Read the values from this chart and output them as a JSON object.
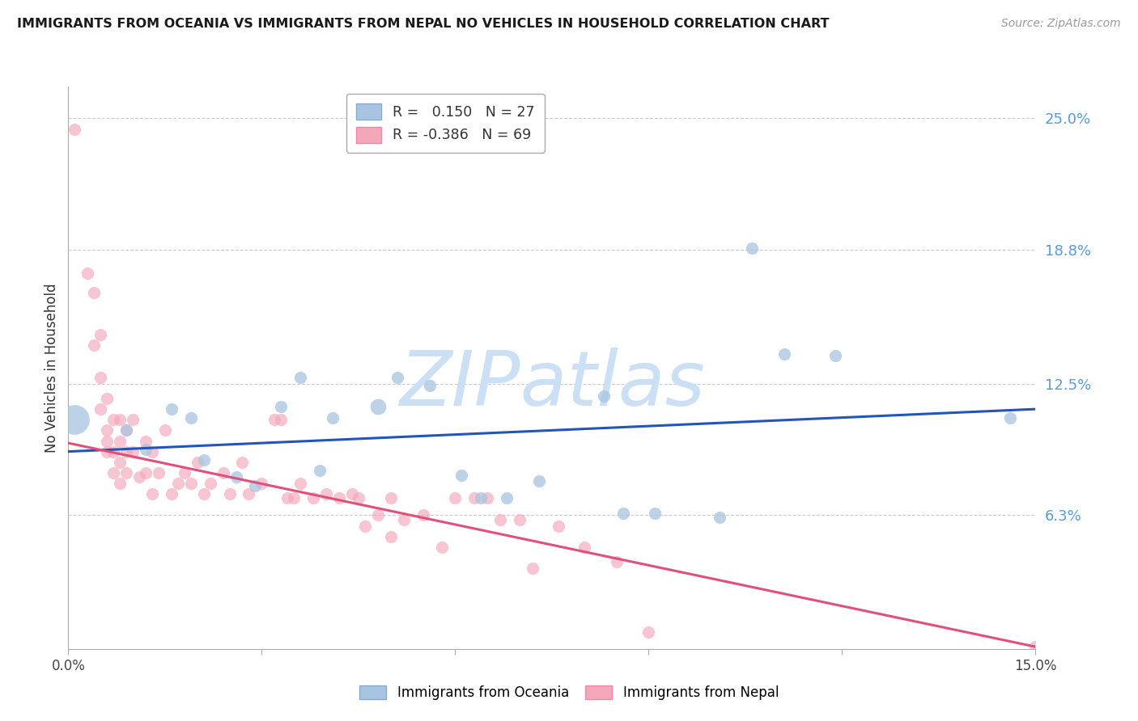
{
  "title": "IMMIGRANTS FROM OCEANIA VS IMMIGRANTS FROM NEPAL NO VEHICLES IN HOUSEHOLD CORRELATION CHART",
  "source": "Source: ZipAtlas.com",
  "ylabel": "No Vehicles in Household",
  "right_yticks": [
    "25.0%",
    "18.8%",
    "12.5%",
    "6.3%"
  ],
  "right_ytick_vals": [
    0.25,
    0.188,
    0.125,
    0.063
  ],
  "xlim": [
    0.0,
    0.15
  ],
  "ylim": [
    0.0,
    0.265
  ],
  "color_oceania": "#a8c4e0",
  "color_nepal": "#f4a7b9",
  "color_line_oceania": "#2255bb",
  "color_line_nepal": "#e0507a",
  "color_ytick_right": "#5b9bd5",
  "watermark_text": "ZIPatlas",
  "watermark_color": "#cce0f5",
  "oceania_points": [
    [
      0.001,
      0.108,
      700
    ],
    [
      0.009,
      0.103,
      120
    ],
    [
      0.012,
      0.094,
      120
    ],
    [
      0.016,
      0.113,
      120
    ],
    [
      0.019,
      0.109,
      120
    ],
    [
      0.021,
      0.089,
      120
    ],
    [
      0.026,
      0.081,
      120
    ],
    [
      0.029,
      0.077,
      120
    ],
    [
      0.033,
      0.114,
      120
    ],
    [
      0.036,
      0.128,
      120
    ],
    [
      0.039,
      0.084,
      120
    ],
    [
      0.041,
      0.109,
      120
    ],
    [
      0.048,
      0.114,
      200
    ],
    [
      0.051,
      0.128,
      120
    ],
    [
      0.056,
      0.124,
      120
    ],
    [
      0.061,
      0.082,
      120
    ],
    [
      0.064,
      0.071,
      120
    ],
    [
      0.068,
      0.071,
      120
    ],
    [
      0.073,
      0.079,
      120
    ],
    [
      0.083,
      0.119,
      120
    ],
    [
      0.086,
      0.064,
      120
    ],
    [
      0.091,
      0.064,
      120
    ],
    [
      0.101,
      0.062,
      120
    ],
    [
      0.106,
      0.189,
      120
    ],
    [
      0.111,
      0.139,
      120
    ],
    [
      0.119,
      0.138,
      120
    ],
    [
      0.146,
      0.109,
      120
    ]
  ],
  "nepal_points": [
    [
      0.001,
      0.245,
      120
    ],
    [
      0.003,
      0.177,
      120
    ],
    [
      0.004,
      0.168,
      120
    ],
    [
      0.004,
      0.143,
      120
    ],
    [
      0.005,
      0.148,
      120
    ],
    [
      0.005,
      0.128,
      120
    ],
    [
      0.005,
      0.113,
      120
    ],
    [
      0.006,
      0.118,
      120
    ],
    [
      0.006,
      0.103,
      120
    ],
    [
      0.006,
      0.098,
      120
    ],
    [
      0.006,
      0.093,
      120
    ],
    [
      0.007,
      0.108,
      120
    ],
    [
      0.007,
      0.093,
      120
    ],
    [
      0.007,
      0.083,
      120
    ],
    [
      0.008,
      0.108,
      120
    ],
    [
      0.008,
      0.098,
      120
    ],
    [
      0.008,
      0.088,
      120
    ],
    [
      0.008,
      0.078,
      120
    ],
    [
      0.009,
      0.103,
      120
    ],
    [
      0.009,
      0.093,
      120
    ],
    [
      0.009,
      0.083,
      120
    ],
    [
      0.01,
      0.108,
      120
    ],
    [
      0.01,
      0.093,
      120
    ],
    [
      0.011,
      0.081,
      120
    ],
    [
      0.012,
      0.098,
      120
    ],
    [
      0.012,
      0.083,
      120
    ],
    [
      0.013,
      0.093,
      120
    ],
    [
      0.013,
      0.073,
      120
    ],
    [
      0.014,
      0.083,
      120
    ],
    [
      0.015,
      0.103,
      120
    ],
    [
      0.016,
      0.073,
      120
    ],
    [
      0.017,
      0.078,
      120
    ],
    [
      0.018,
      0.083,
      120
    ],
    [
      0.019,
      0.078,
      120
    ],
    [
      0.02,
      0.088,
      120
    ],
    [
      0.021,
      0.073,
      120
    ],
    [
      0.022,
      0.078,
      120
    ],
    [
      0.024,
      0.083,
      120
    ],
    [
      0.025,
      0.073,
      120
    ],
    [
      0.027,
      0.088,
      120
    ],
    [
      0.028,
      0.073,
      120
    ],
    [
      0.03,
      0.078,
      120
    ],
    [
      0.032,
      0.108,
      120
    ],
    [
      0.033,
      0.108,
      120
    ],
    [
      0.034,
      0.071,
      120
    ],
    [
      0.035,
      0.071,
      120
    ],
    [
      0.036,
      0.078,
      120
    ],
    [
      0.038,
      0.071,
      120
    ],
    [
      0.04,
      0.073,
      120
    ],
    [
      0.042,
      0.071,
      120
    ],
    [
      0.044,
      0.073,
      120
    ],
    [
      0.045,
      0.071,
      120
    ],
    [
      0.046,
      0.058,
      120
    ],
    [
      0.048,
      0.063,
      120
    ],
    [
      0.05,
      0.053,
      120
    ],
    [
      0.05,
      0.071,
      120
    ],
    [
      0.052,
      0.061,
      120
    ],
    [
      0.055,
      0.063,
      120
    ],
    [
      0.058,
      0.048,
      120
    ],
    [
      0.06,
      0.071,
      120
    ],
    [
      0.063,
      0.071,
      120
    ],
    [
      0.065,
      0.071,
      120
    ],
    [
      0.067,
      0.061,
      120
    ],
    [
      0.07,
      0.061,
      120
    ],
    [
      0.072,
      0.038,
      120
    ],
    [
      0.076,
      0.058,
      120
    ],
    [
      0.08,
      0.048,
      120
    ],
    [
      0.085,
      0.041,
      120
    ],
    [
      0.09,
      0.008,
      120
    ],
    [
      0.15,
      0.001,
      120
    ]
  ],
  "oceania_trend": [
    0.0,
    0.093,
    0.15,
    0.113
  ],
  "nepal_trend": [
    0.0,
    0.097,
    0.15,
    0.001
  ]
}
